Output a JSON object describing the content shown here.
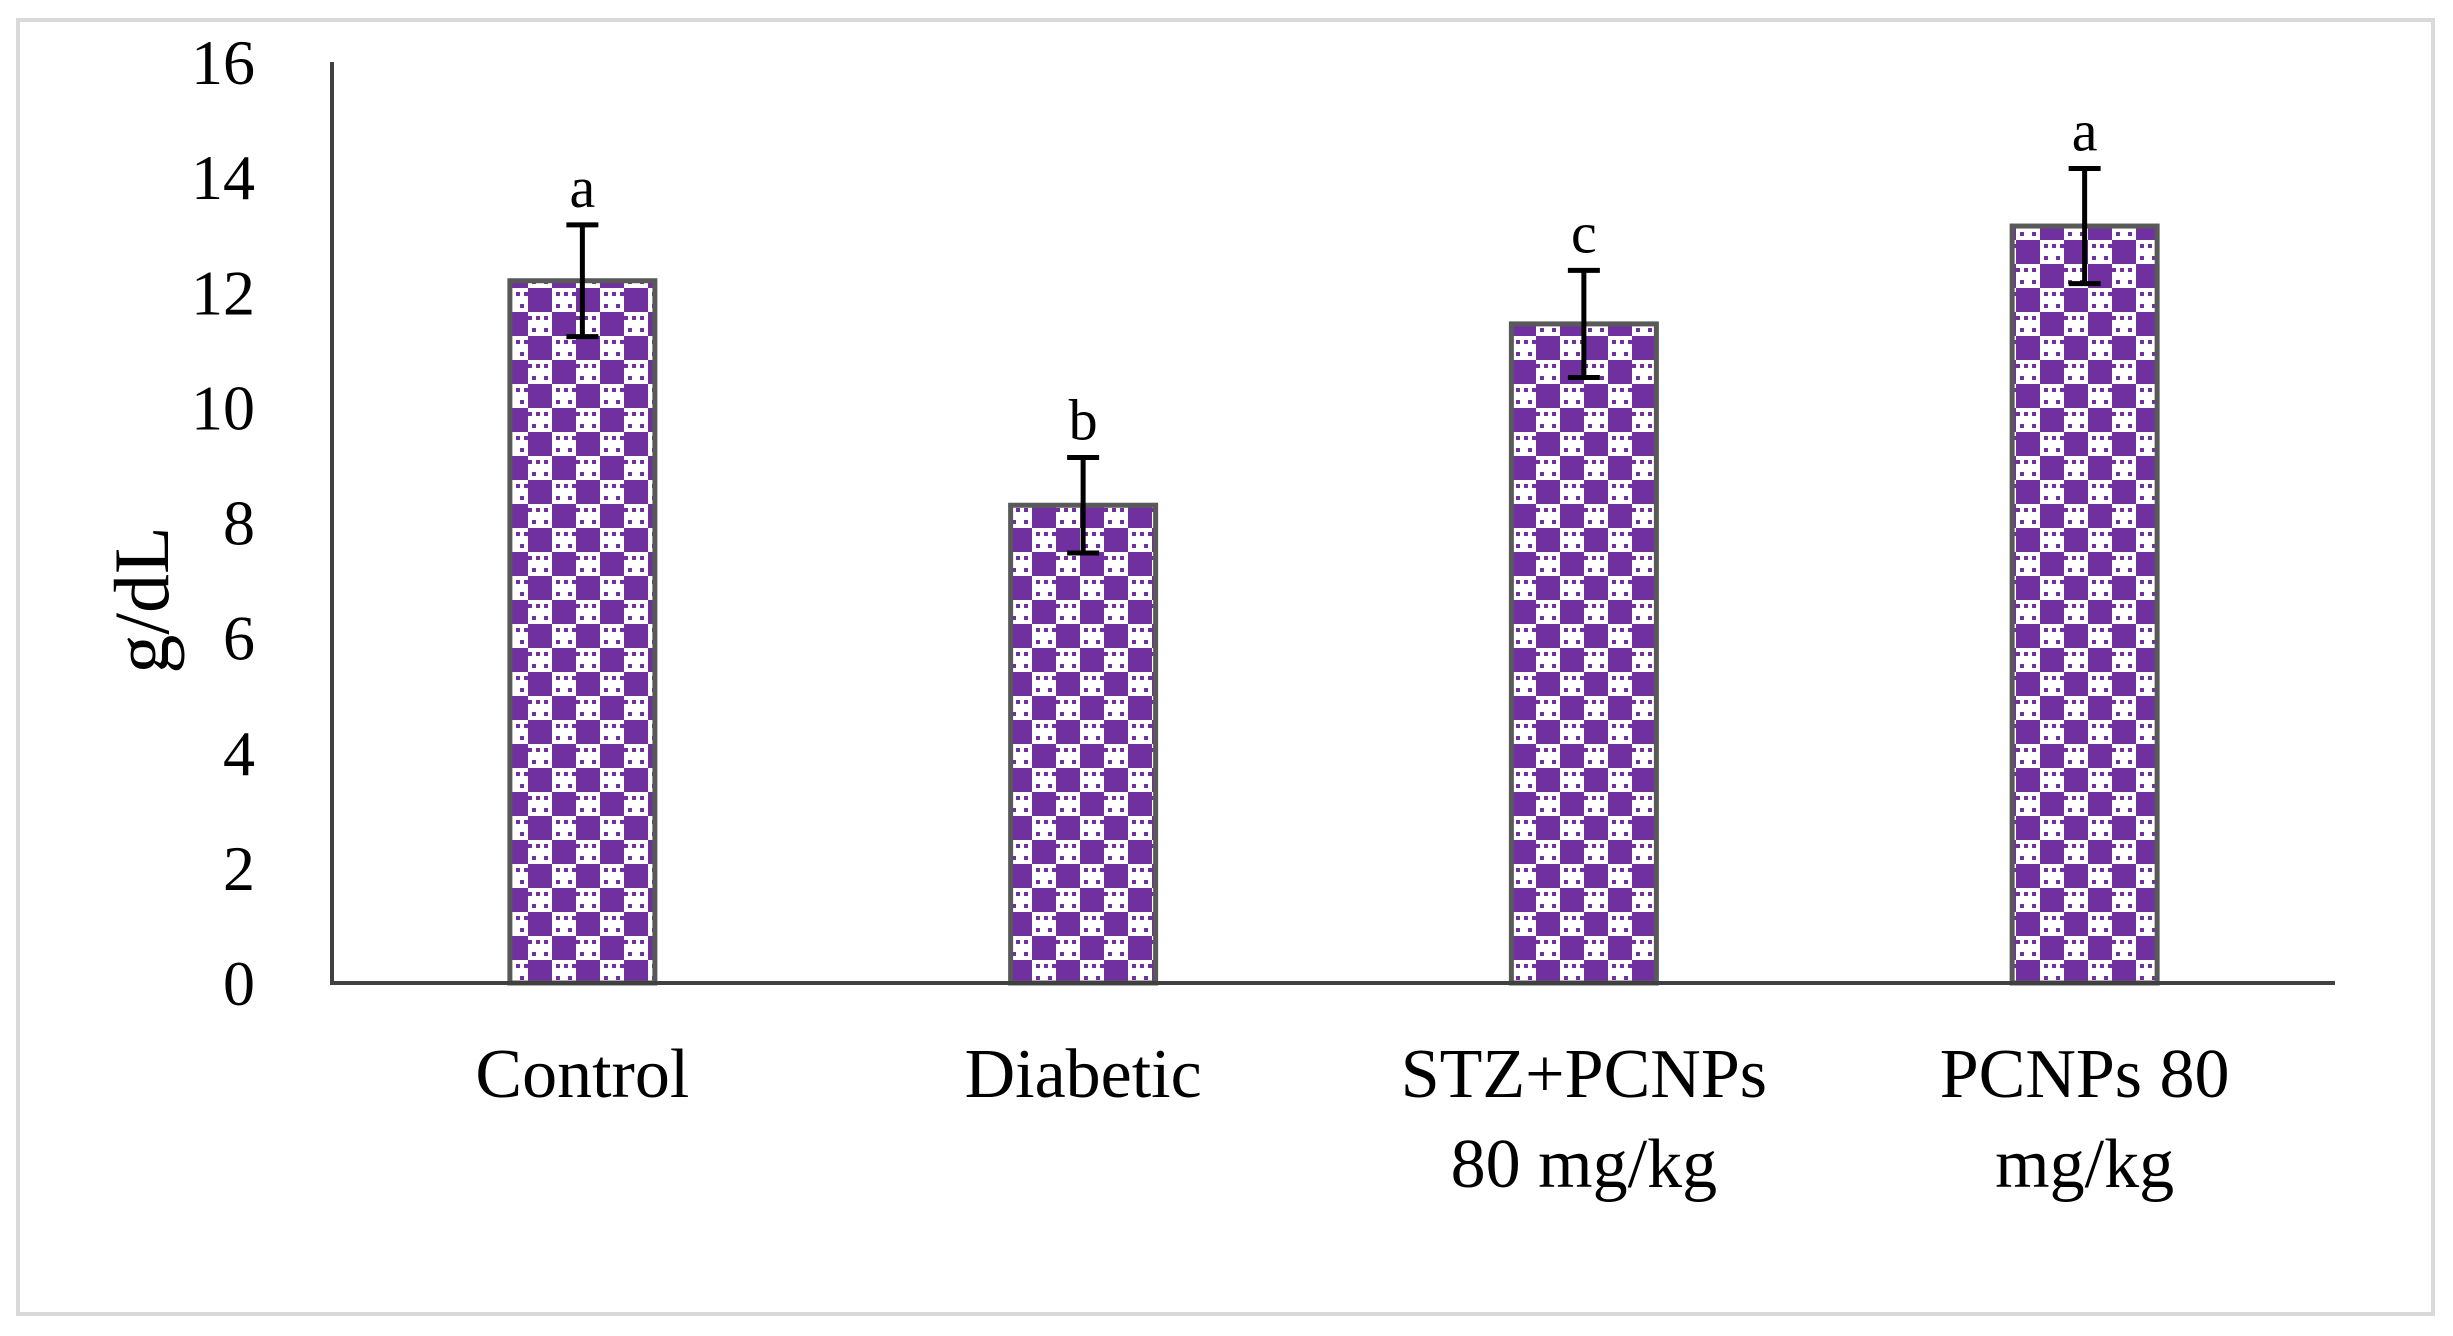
{
  "chart_data": {
    "type": "bar",
    "title": "",
    "xlabel": "",
    "ylabel": "g/dL",
    "ylim": [
      0,
      16
    ],
    "yticks": [
      "0",
      "2",
      "4",
      "6",
      "8",
      "10",
      "12",
      "14",
      "16"
    ],
    "grid": false,
    "categories": [
      {
        "lines": [
          "Control"
        ]
      },
      {
        "lines": [
          "Diabetic"
        ]
      },
      {
        "lines": [
          "STZ+PCNPs",
          "80 mg/kg"
        ]
      },
      {
        "lines": [
          "PCNPs 80",
          "mg/kg"
        ]
      }
    ],
    "values": [
      12.2,
      8.3,
      11.45,
      13.15
    ],
    "errors": [
      0.97,
      0.83,
      0.93,
      1.0
    ],
    "significance": [
      "a",
      "b",
      "c",
      "a"
    ],
    "colors": {
      "bar_fill": "#7030a0",
      "bar_outline": "#595959",
      "axis": "#404040",
      "error_bar": "#000000",
      "frame": "#d9d9d9"
    }
  }
}
